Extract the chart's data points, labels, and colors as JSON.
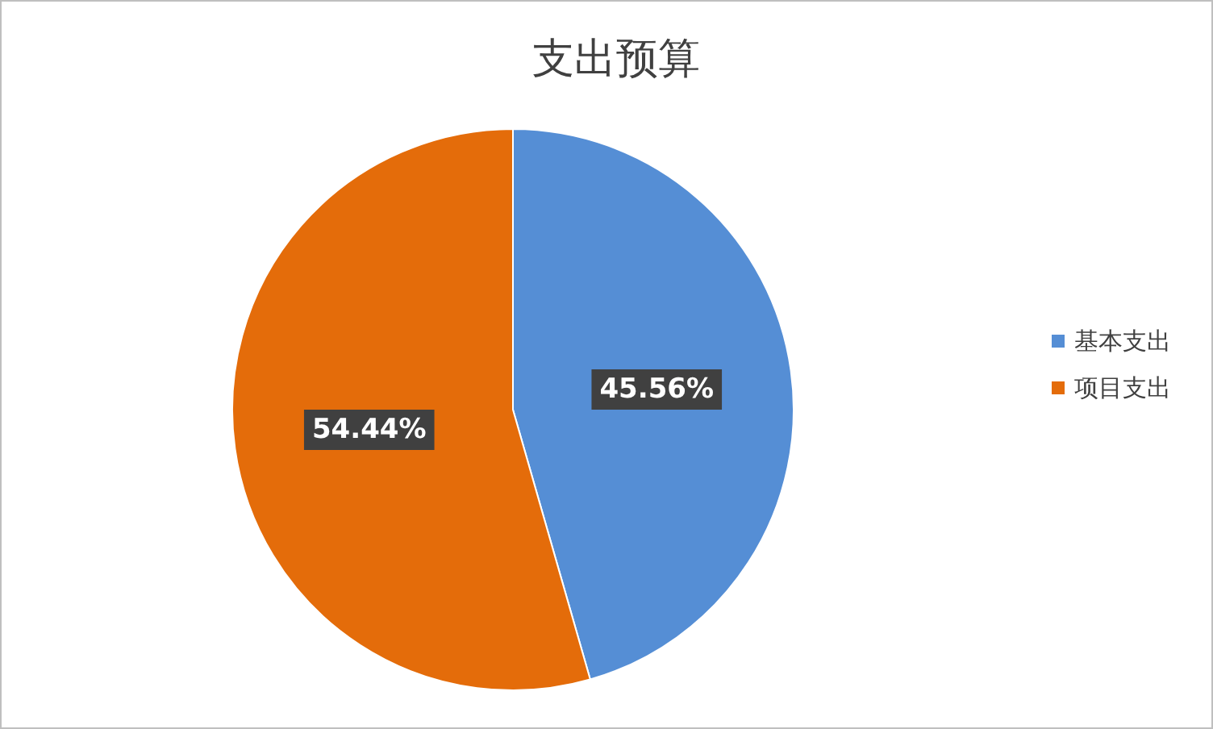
{
  "chart_data": {
    "type": "pie",
    "title": "支出预算",
    "categories": [
      "基本支出",
      "项目支出"
    ],
    "values": [
      45.56,
      54.44
    ],
    "colors": [
      "#558ed5",
      "#e46c0a"
    ],
    "value_labels": [
      "45.56%",
      "54.44%"
    ],
    "legend": "right"
  }
}
